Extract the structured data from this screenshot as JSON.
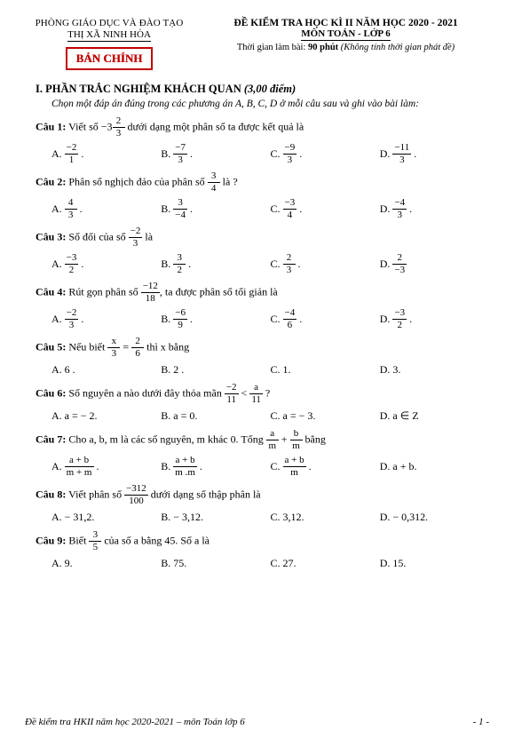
{
  "header": {
    "dept": "PHÒNG GIÁO DỤC VÀ ĐÀO TẠO",
    "school": "THỊ XÃ NINH HÒA",
    "stamp": "BẢN CHÍNH",
    "exam_title": "ĐỀ KIỂM TRA HỌC KÌ II NĂM HỌC 2020 - 2021",
    "subject": "MÔN TOÁN - LỚP 6",
    "time_label": "Thời gian làm bài:",
    "time_value": "90 phút",
    "time_note": "(Không tính thời gian phát đề)"
  },
  "section1": {
    "heading_label": "I. PHẦN TRẮC NGHIỆM KHÁCH QUAN",
    "heading_points": "(3,00 điểm)",
    "instruction": "Chọn một đáp án đúng trong các phương án A, B, C, D ở mỗi câu sau và ghi vào bài làm:"
  },
  "q1": {
    "label": "Câu 1:",
    "text1": "Viết số −3",
    "mix_n": "2",
    "mix_d": "3",
    "text2": "dưới dạng một phân số ta được kết quả là",
    "A_n": "−2",
    "A_d": "1",
    "B_n": "−7",
    "B_d": "3",
    "C_n": "−9",
    "C_d": "3",
    "D_n": "−11",
    "D_d": "3"
  },
  "q2": {
    "label": "Câu 2:",
    "text1": "Phân số nghịch đảo của phân số",
    "f_n": "3",
    "f_d": "4",
    "text2": "là ?",
    "A_n": "4",
    "A_d": "3",
    "B_n": "3",
    "B_d": "−4",
    "C_n": "−3",
    "C_d": "4",
    "D_n": "−4",
    "D_d": "3"
  },
  "q3": {
    "label": "Câu 3:",
    "text1": "Số đối của số",
    "f_n": "−2",
    "f_d": "3",
    "text2": "là",
    "A_n": "−3",
    "A_d": "2",
    "B_n": "3",
    "B_d": "2",
    "C_n": "2",
    "C_d": "3",
    "D_n": "2",
    "D_d": "−3"
  },
  "q4": {
    "label": "Câu 4:",
    "text1": "Rút gọn phân số",
    "f_n": "−12",
    "f_d": "18",
    "text2": ", ta được phân số tối giản là",
    "A_n": "−2",
    "A_d": "3",
    "B_n": "−6",
    "B_d": "9",
    "C_n": "−4",
    "C_d": "6",
    "D_n": "−3",
    "D_d": "2"
  },
  "q5": {
    "label": "Câu 5:",
    "text1": "Nếu biết",
    "lhs_n": "x",
    "lhs_d": "3",
    "eq": "=",
    "rhs_n": "2",
    "rhs_d": "6",
    "text2": "thì x bằng",
    "A": "A. 6 .",
    "B": "B. 2 .",
    "C": "C. 1.",
    "D": "D. 3."
  },
  "q6": {
    "label": "Câu 6:",
    "text1": "Số nguyên a nào dưới đây thỏa mãn",
    "l_n": "−2",
    "l_d": "11",
    "lt": "<",
    "r_n": "a",
    "r_d": "11",
    "text2": "?",
    "A": "A. a = − 2.",
    "B": "B. a = 0.",
    "C": "C. a = − 3.",
    "D": "D. a ∈ Z"
  },
  "q7": {
    "label": "Câu 7:",
    "text1": "Cho a, b, m là các số nguyên, m khác 0. Tổng",
    "l_n": "a",
    "l_d": "m",
    "plus": "+",
    "r_n": "b",
    "r_d": "m",
    "text2": "bằng",
    "A_n": "a + b",
    "A_d": "m + m",
    "B_n": "a + b",
    "B_d": "m .m",
    "C_n": "a + b",
    "C_d": "m",
    "D": "D. a + b."
  },
  "q8": {
    "label": "Câu 8:",
    "text1": "Viết phân số",
    "f_n": "−312",
    "f_d": "100",
    "text2": "dưới dạng số thập phân là",
    "A": "A. − 31,2.",
    "B": "B. − 3,12.",
    "C": "C. 3,12.",
    "D": "D. − 0,312."
  },
  "q9": {
    "label": "Câu 9:",
    "text1": "Biết",
    "f_n": "3",
    "f_d": "5",
    "text2": "của số a bằng 45. Số a là",
    "A": "A. 9.",
    "B": "B. 75.",
    "C": "C. 27.",
    "D": "D. 15."
  },
  "footer": {
    "left": "Đề kiểm tra HKII năm học 2020-2021 – môn Toán lớp 6",
    "right": "- 1 -"
  }
}
